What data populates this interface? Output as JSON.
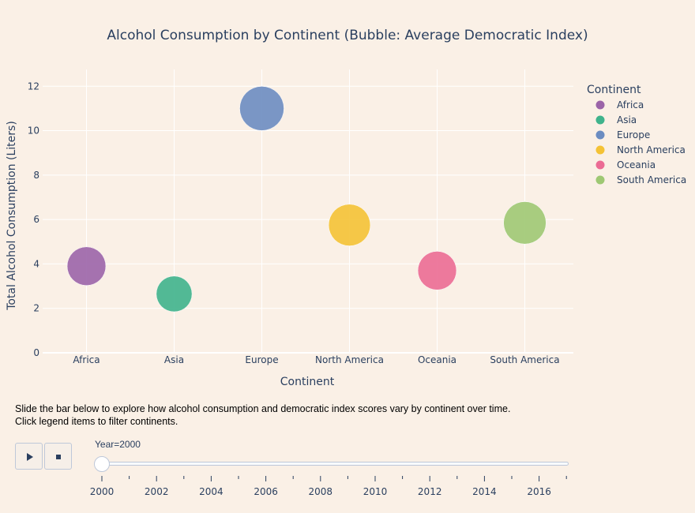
{
  "chart_data": {
    "type": "scatter",
    "title": "Alcohol Consumption by Continent (Bubble: Average Democratic Index)",
    "xlabel": "Continent",
    "ylabel": "Total Alcohol Consumption (Liters)",
    "categories": [
      "Africa",
      "Asia",
      "Europe",
      "North America",
      "Oceania",
      "South America"
    ],
    "ylim": [
      0,
      12.4
    ],
    "yticks": [
      0,
      2,
      4,
      6,
      8,
      10,
      12
    ],
    "grid": true,
    "legend_title": "Continent",
    "legend_position": "right",
    "series": [
      {
        "name": "Africa",
        "x": "Africa",
        "y": 3.9,
        "size": 4.8,
        "color": "#9b64a8"
      },
      {
        "name": "Asia",
        "x": "Asia",
        "y": 2.65,
        "size": 4.1,
        "color": "#3fb38c"
      },
      {
        "name": "Europe",
        "x": "Europe",
        "y": 11.0,
        "size": 6.3,
        "color": "#6b8cc1"
      },
      {
        "name": "North America",
        "x": "North America",
        "y": 5.75,
        "size": 5.6,
        "color": "#f4c235"
      },
      {
        "name": "Oceania",
        "x": "Oceania",
        "y": 3.7,
        "size": 4.8,
        "color": "#eb6b94"
      },
      {
        "name": "South America",
        "x": "South America",
        "y": 5.85,
        "size": 5.8,
        "color": "#9ec873"
      }
    ]
  },
  "instructions": {
    "line1": "Slide the bar below to explore how alcohol consumption and democratic index scores vary by continent over time.",
    "line2": "Click legend items to filter continents."
  },
  "controls": {
    "slider_label": "Year=2000",
    "slider_value": 2000,
    "years": [
      "2000",
      "2002",
      "2004",
      "2006",
      "2008",
      "2010",
      "2012",
      "2014",
      "2016"
    ],
    "play_icon": "play-icon",
    "stop_icon": "stop-icon"
  }
}
